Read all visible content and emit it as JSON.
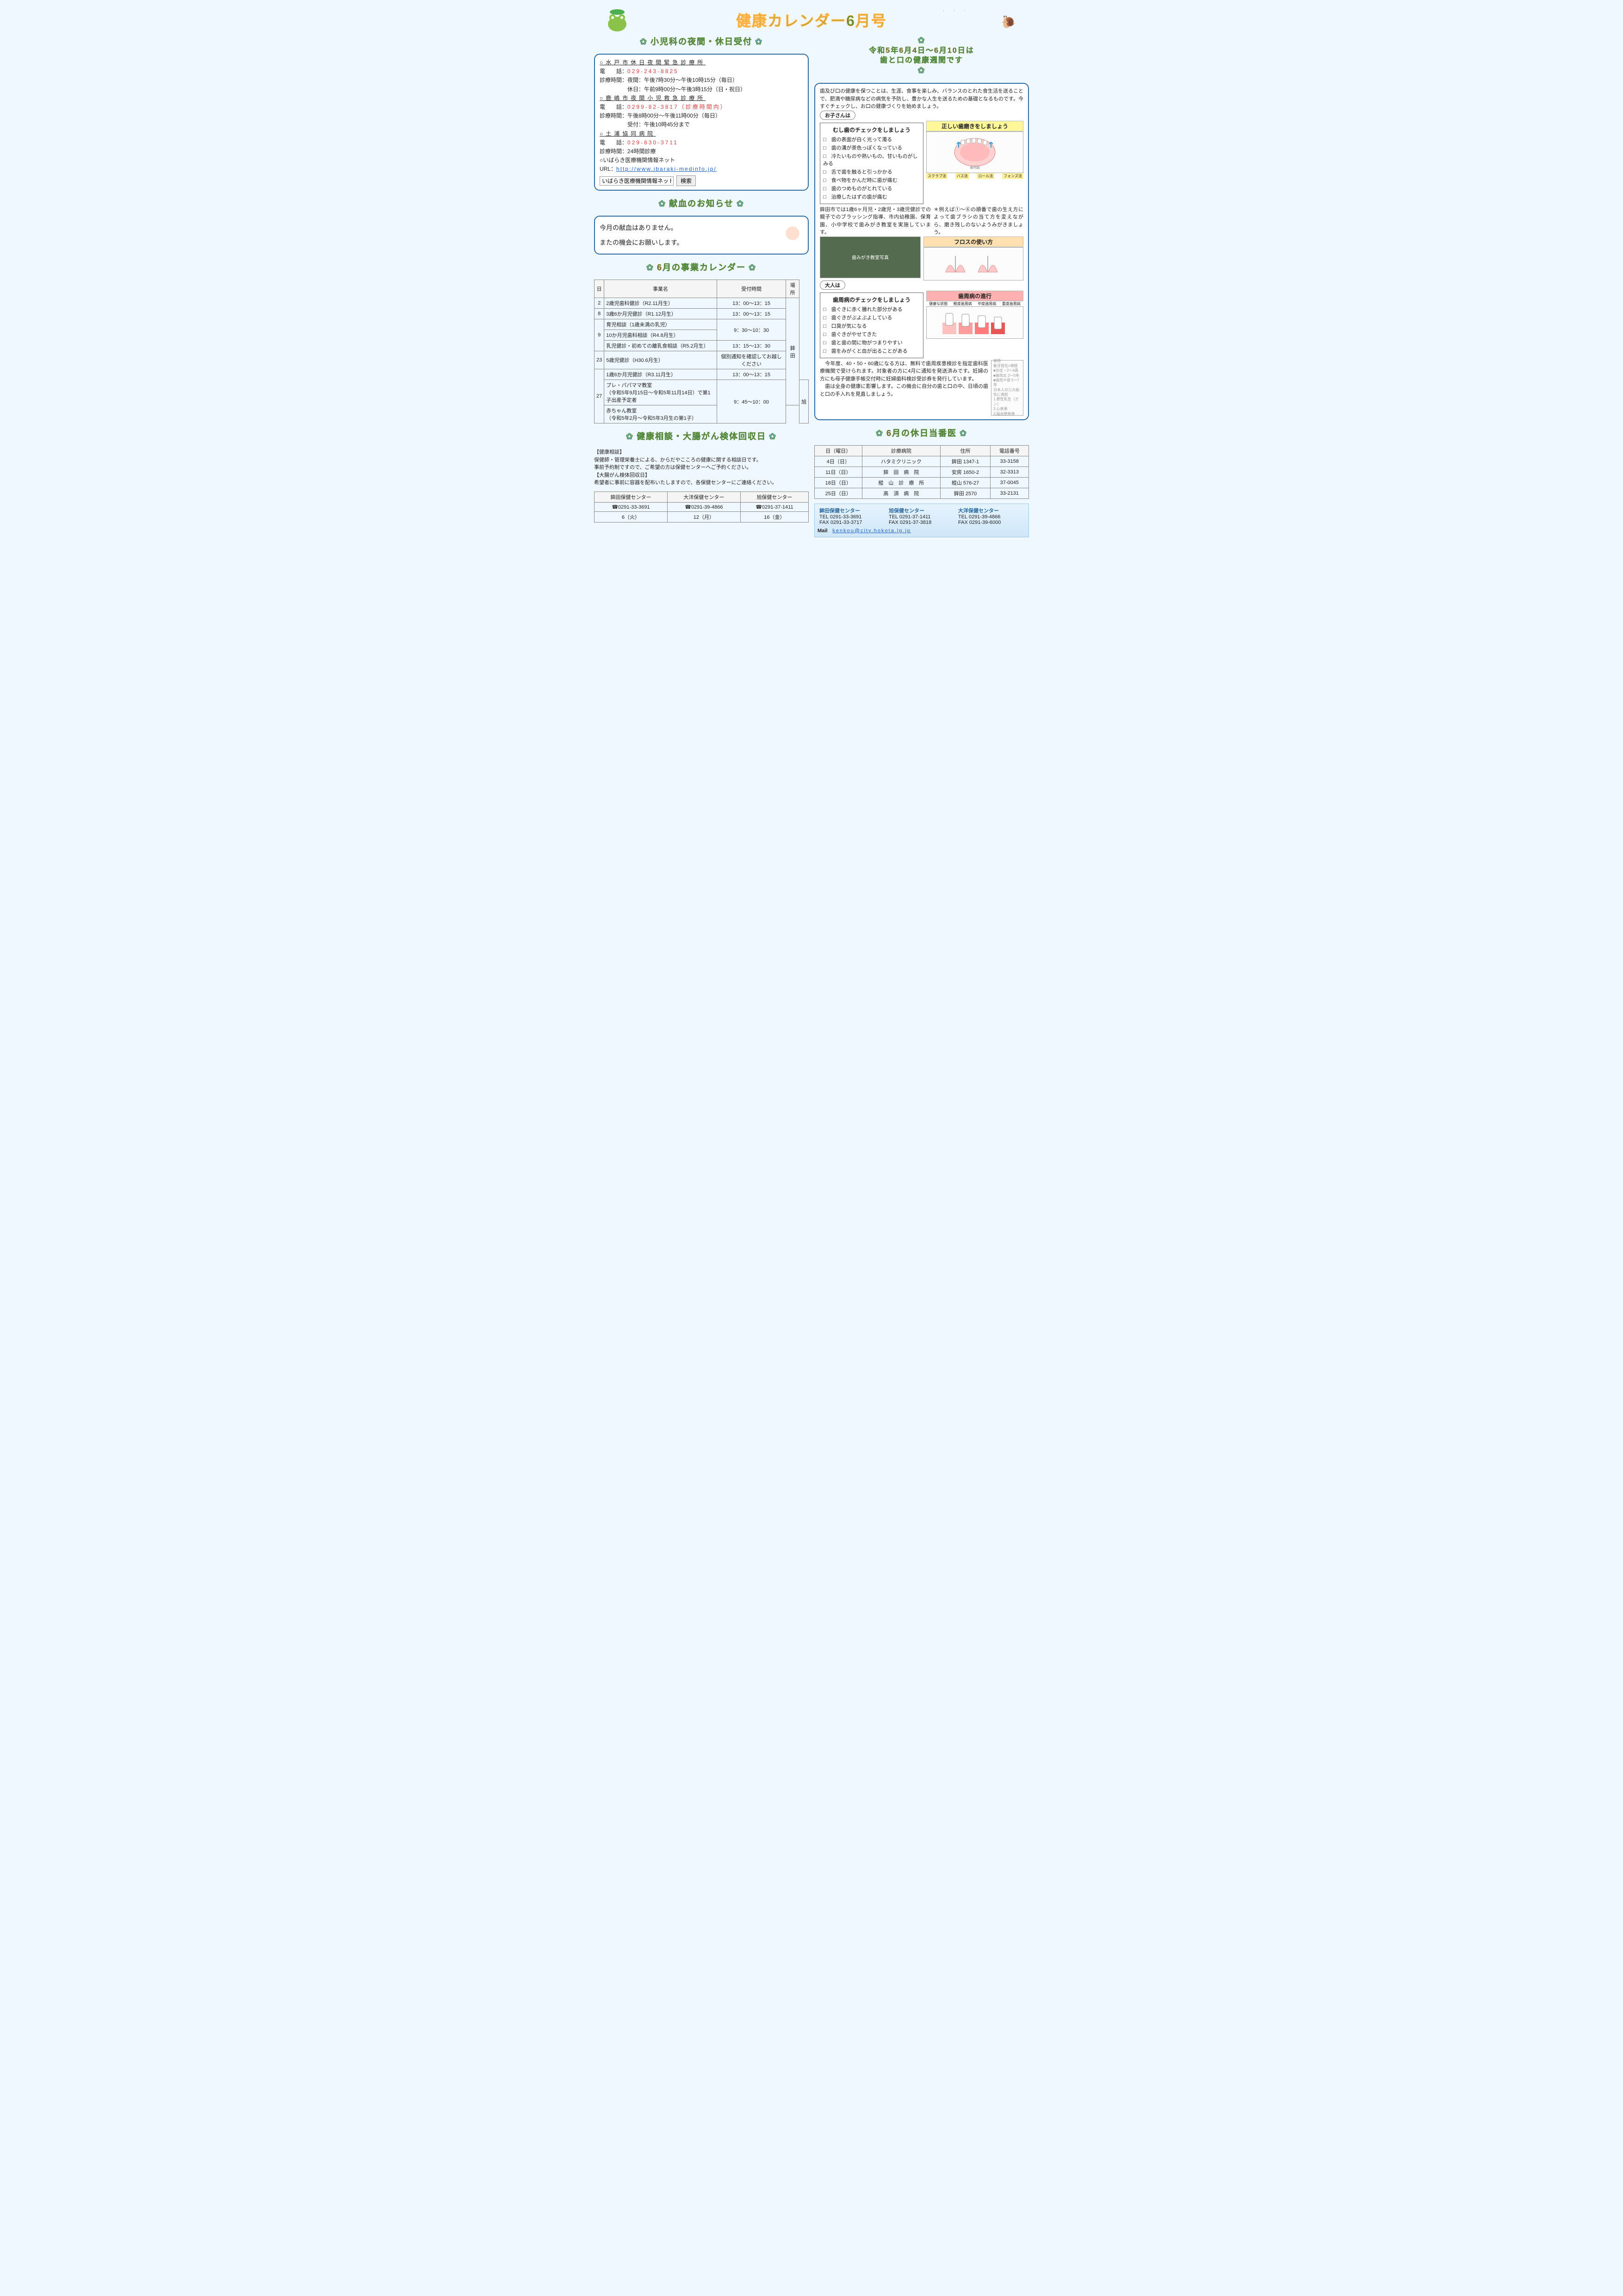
{
  "title": "健康カレンダー6月号",
  "left": {
    "sec1_title": "小児科の夜間・休日受付",
    "hospitals": [
      {
        "name": "○水戸市休日夜間緊急診療所",
        "phone_label": "電　　話：",
        "phone": "029-243-8825",
        "lines": [
          "診療時間：夜間：午後7時30分～午後10時15分（毎日）",
          "　　　　　休日：午前9時00分～午後3時15分（日・祝日）"
        ]
      },
      {
        "name": "○鹿嶋市夜間小児救急診療所",
        "phone_label": "電　　話：",
        "phone": "0299-82-3817（診療時間内）",
        "lines": [
          "診療時間：午後8時00分～午後11時00分（毎日）",
          "　　　　　受付：午後10時45分まで"
        ]
      },
      {
        "name": "○土浦協同病院",
        "phone_label": "電　　話：",
        "phone": "029-830-3711",
        "lines": [
          "診療時間：24時間診療"
        ]
      }
    ],
    "net_label": "○いばらき医療機関情報ネット",
    "url_label": "URL：",
    "url": "http://www.ibaraki-medinfo.jp/",
    "search_text": "いばらき医療機関情報ネット",
    "search_btn": "検索",
    "sec2_title": "献血のお知らせ",
    "blood_l1": "今月の献血はありません。",
    "blood_l2": "またの機会にお願いします。",
    "sec3_title": "6月の事業カレンダー",
    "cal_headers": [
      "日",
      "事業名",
      "受付時間",
      "場所"
    ],
    "cal_rows": [
      {
        "d": "2",
        "n": "2歳児歯科健診（R2.11月生）",
        "t": "13：00～13：15",
        "p": "鉾田",
        "rs": 8
      },
      {
        "d": "8",
        "n": "3歳6か月児健診（R1.12月生）",
        "t": "13：00～13：15"
      },
      {
        "d": "9",
        "dr": 3,
        "n": "育児相談（1歳未満の乳児）",
        "t": "9：30～10：30",
        "tr": 2
      },
      {
        "n": "10か月児歯科相談（R4.8月生）"
      },
      {
        "n": "乳児健診・初めての離乳食相談（R5.2月生）",
        "t": "13：15～13：30"
      },
      {
        "d": "23",
        "n": "5歳児健診（H30.6月生）",
        "t": "個別通知を確認してお越しください"
      },
      {
        "d": "27",
        "dr": 3,
        "n": "1歳6か月児健診（R3.11月生）",
        "t": "13：00～13：15"
      },
      {
        "n": "プレ・パパママ教室\n（令和5年9月15日～令和5年11月14日）で第1子出産予定者",
        "t": "9：45～10：00",
        "tr": 2,
        "p": "旭",
        "pr": 2
      },
      {
        "n": "赤ちゃん教室\n（令和5年2月～令和5年3月生の第1子）"
      }
    ],
    "sec4_title": "健康相談・大腸がん検体回収日",
    "hc_l1": "【健康相談】",
    "hc_l2": "保健師・管理栄養士による、からだやこころの健康に関する相談日です。",
    "hc_l3": "事前予約制ですので、ご希望の方は保健センターへご予約ください。",
    "hc_l4": "【大腸がん検体回収日】",
    "hc_l5": "希望者に事前に容器を配布いたしますので、各保健センターにご連絡ください。",
    "hc_headers": [
      "鉾田保健センター",
      "大洋保健センター",
      "旭保健センター"
    ],
    "hc_phones": [
      "☎0291-33-3691",
      "☎0291-39-4866",
      "☎0291-37-1411"
    ],
    "hc_dates": [
      "6（火）",
      "12（月）",
      "16（金）"
    ]
  },
  "right": {
    "sec1_title_l1": "令和5年6月4日～6月10日は",
    "sec1_title_l2": "歯と口の健康週間です",
    "intro": "歯及び口の健康を保つことは、生涯、食事を楽しみ、バランスのとれた食生活を送ることで、肥満や糖尿病などの病気を予防し、豊かな人生を送るための基礎となるものです。今すぐチェックし、お口の健康づくりを始めましょう。",
    "tag_child": "お子さんは",
    "child_check_title": "むし歯のチェックをしましょう",
    "child_checks": [
      "□　歯の表面が白く光って濁る",
      "□　歯の溝が茶色っぽくなっている",
      "□　冷たいものや熱いもの、甘いものがしみる",
      "□　舌で歯を触ると引っかかる",
      "□　食べ物をかんだ時に歯が痛む",
      "□　歯のつめものがとれている",
      "□　治療したはずの歯が痛む"
    ],
    "brush_title": "正しい歯磨きをしましょう",
    "brush_labels": [
      "スクラブ法",
      "バス法",
      "ロール法",
      "フォンズ法"
    ],
    "child_note": "鉾田市では1歳6ヶ月児・2歳児・3歳児健診での親子でのブラッシング指導、市内幼稚園、保育園、小中学校で歯みがき教室を実施しています。",
    "brush_note": "＊例えば①～⑥の順番で歯の生え方によって歯ブラシの当て方を変えながら、磨き残しのないようみがきましょう。",
    "floss_title": "フロスの使い方",
    "floss_caps": [
      "ゆっくりとスライドさせる",
      "歯面に這わせる",
      "下まで一気に押し込むのはNG",
      "抜くところはココ！"
    ],
    "tag_adult": "大人は",
    "adult_check_title": "歯周病のチェックをしましょう",
    "adult_checks": [
      "□　歯ぐきに赤く腫れた部分がある",
      "□　歯ぐきがぶよぶよしている",
      "□　口臭が気になる",
      "□　歯ぐきがやせてきた",
      "□　歯と歯の間に物がつまりやすい",
      "□　歯をみがくと血が出ることがある"
    ],
    "gum_stage_title": "歯周病の進行",
    "gum_stages": [
      "健康な状態",
      "軽度歯周病",
      "中度歯周病",
      "重度歯周病"
    ],
    "adult_note": "　今年度、40・50・60歳になる方は、無料で歯周疾患検診を指定歯科医療機関で受けられます。対象者の方に4月に通知を発送済みです。妊婦の方にも母子健康手帳交付時に妊婦歯科検診受診券を発行しています。\n　歯は全身の健康に影響します。この機会に自分の歯と口の中、日頃の歯と口の手入れを見直しましょう。",
    "tooth_diag_labels": [
      "歯随",
      "象牙質化=神経",
      "■炎症・2～4週",
      "■歯肉炎 2～5年",
      "■歯肉や骨 5～7年",
      "日本人の三大病気に直結",
      "1.悪性乳生（ガン）",
      "2.心疾患",
      "3.脳血管疾患"
    ],
    "sec2_title": "6月の休日当番医",
    "duty_headers": [
      "日（曜日）",
      "診療病院",
      "住所",
      "電話番号"
    ],
    "duty_rows": [
      [
        "4日（日）",
        "ハタミクリニック",
        "鉾田 1347-1",
        "33-3158"
      ],
      [
        "11日（日）",
        "鉾　田　病　院",
        "安房 1650-2",
        "32-3313"
      ],
      [
        "18日（日）",
        "樅　山　診　療　所",
        "樅山 576-27",
        "37-0045"
      ],
      [
        "25日（日）",
        "高　須　病　院",
        "鉾田 2570",
        "33-2131"
      ]
    ],
    "centers": [
      {
        "name": "鉾田保健センター",
        "tel": "TEL 0291-33-3691",
        "fax": "FAX 0291-33-3717"
      },
      {
        "name": "旭保健センター",
        "tel": "TEL 0291-37-1411",
        "fax": "FAX 0291-37-3818"
      },
      {
        "name": "大洋保健センター",
        "tel": "TEL 0291-39-4866",
        "fax": "FAX 0291-39-6000"
      }
    ],
    "mail_label": "Mail",
    "mail": "kenkou@city.hokota.lg.jp"
  }
}
